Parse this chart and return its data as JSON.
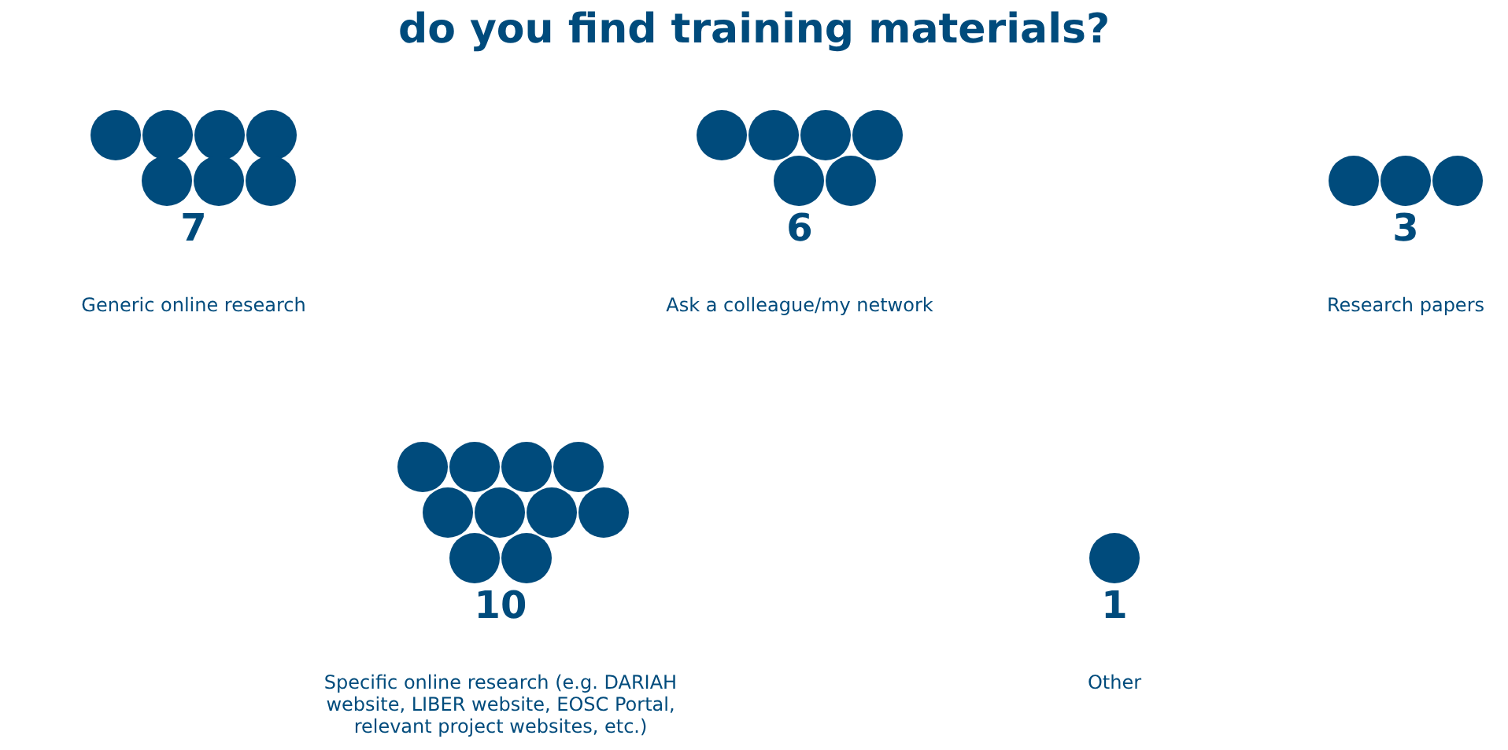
{
  "chart_data": {
    "type": "other",
    "title": "do you find training materials?",
    "categories": [
      "Generic online research",
      "Ask a colleague/my network",
      "Research papers",
      "Specific online research (e.g. DARIAH website, LIBER website, EOSC Portal, relevant project websites, etc.)",
      "Other"
    ],
    "values": [
      7,
      6,
      3,
      10,
      1
    ],
    "color": "#004b7c",
    "data_labels": true
  }
}
